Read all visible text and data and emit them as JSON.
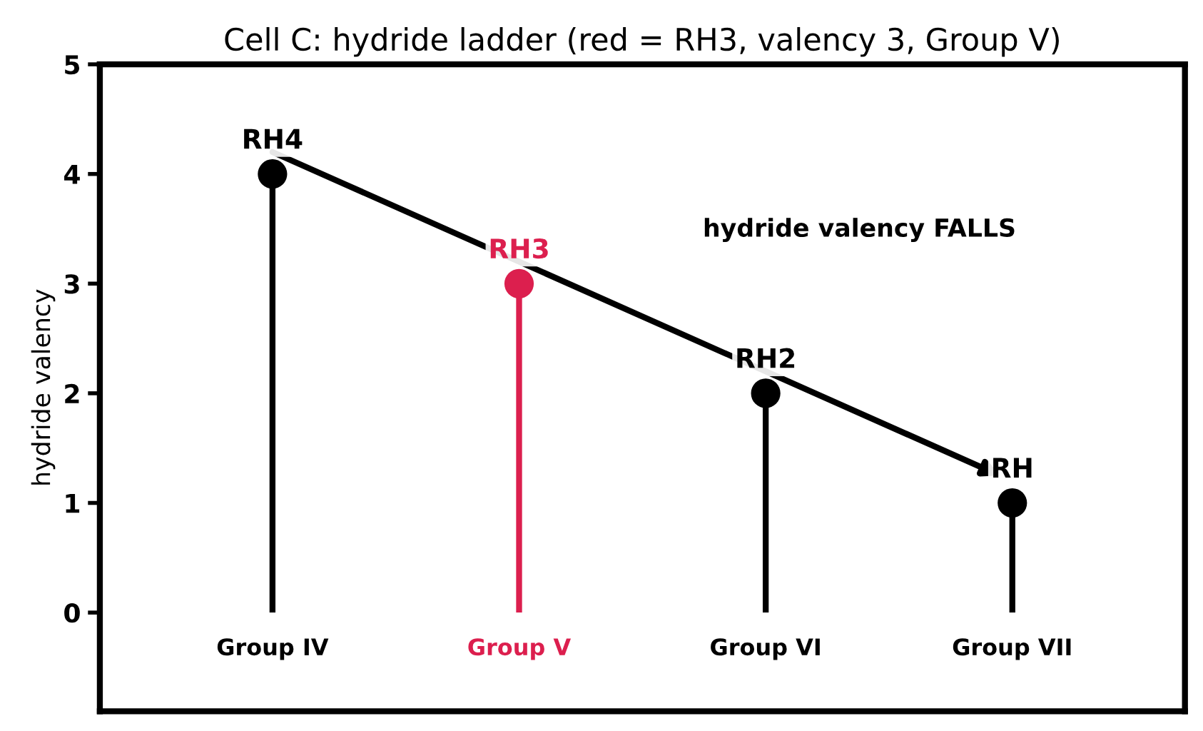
{
  "chart_data": {
    "type": "lollipop",
    "title": "Cell C: hydride ladder (red = RH3, valency 3, Group V)",
    "ylabel": "hydride valency",
    "categories": [
      "Group IV",
      "Group V",
      "Group VI",
      "Group VII"
    ],
    "series": [
      {
        "values": [
          4,
          3,
          2,
          1
        ],
        "colors": [
          "#000000",
          "#dc1f4e",
          "#000000",
          "#000000"
        ]
      }
    ],
    "ylim": [
      -0.9,
      5
    ],
    "yticks": [
      0,
      1,
      2,
      3,
      4,
      5
    ],
    "marker": "circle",
    "annotations": [
      {
        "text": "RH4",
        "x": "Group IV",
        "y": 4
      },
      {
        "text": "RH3",
        "x": "Group V",
        "y": 3
      },
      {
        "text": "RH2",
        "x": "Group VI",
        "y": 2
      },
      {
        "text": "RH",
        "x": "Group VII",
        "y": 1
      },
      "hydride valency FALLS"
    ]
  }
}
